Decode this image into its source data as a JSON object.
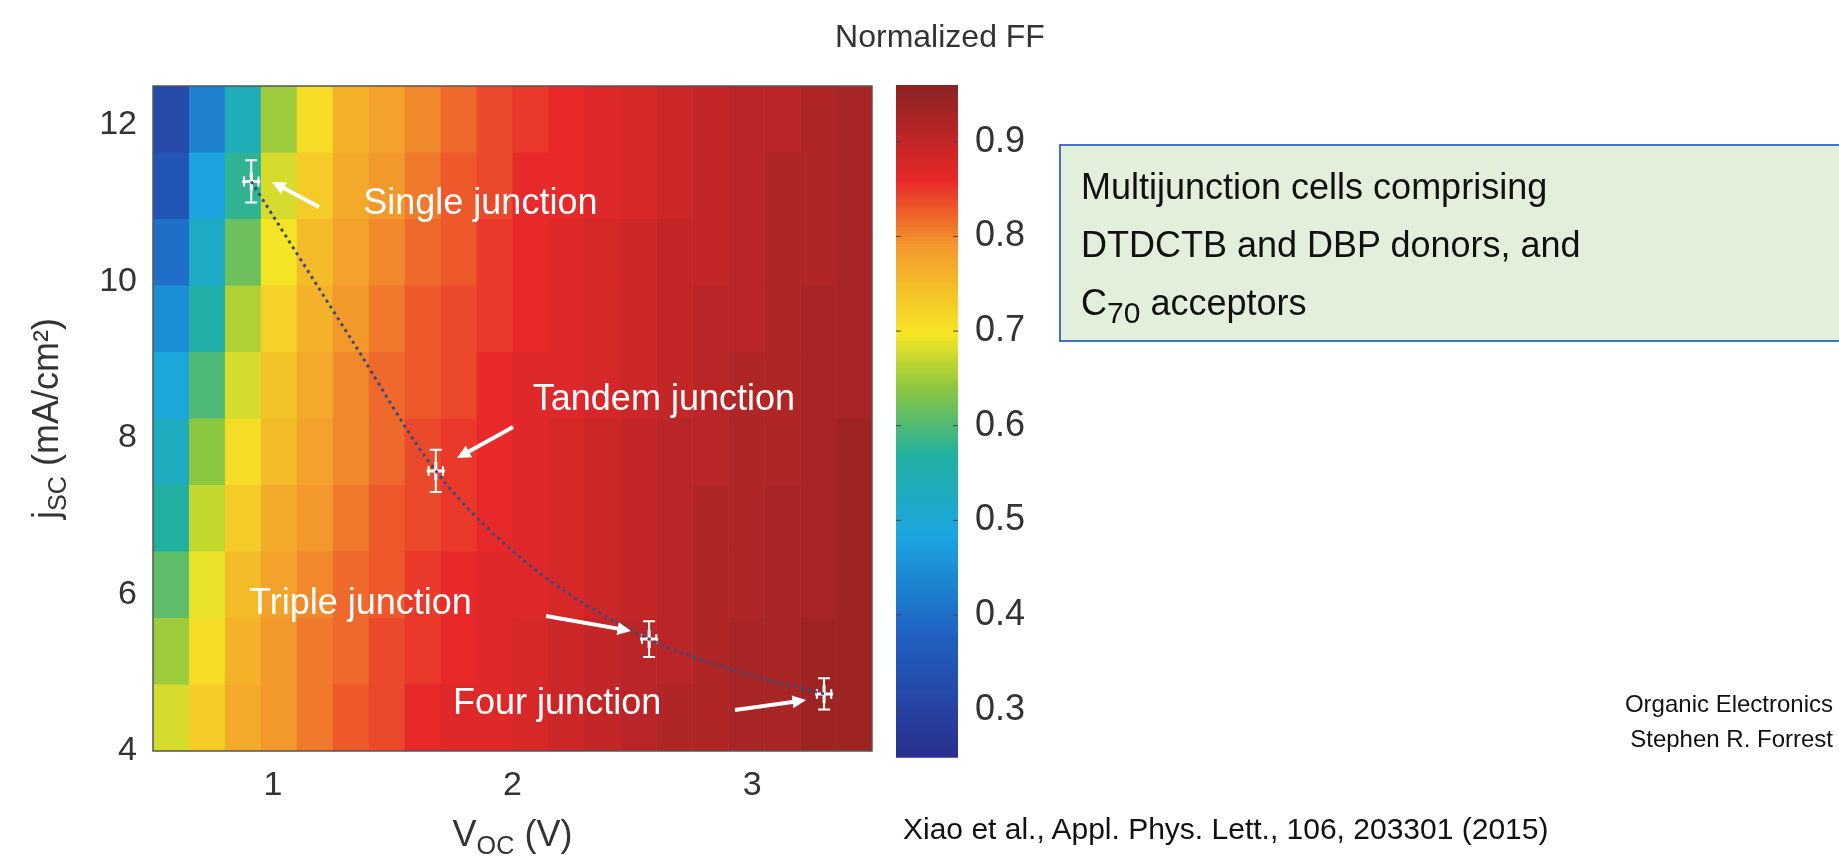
{
  "chart_data": {
    "type": "heatmap",
    "xlabel": "V$_{OC}$ (V)",
    "ylabel": "j$_{SC}$ (mA/cm²)",
    "clabel": "Normalized FF",
    "xlim": [
      0.5,
      3.5
    ],
    "ylim": [
      4,
      12.5
    ],
    "xticks": [
      1,
      2,
      3
    ],
    "yticks": [
      4,
      6,
      8,
      10,
      12
    ],
    "clim": [
      0.25,
      0.96
    ],
    "cticks": [
      0.3,
      0.4,
      0.5,
      0.6,
      0.7,
      0.8,
      0.9
    ],
    "x": [
      0.575,
      0.725,
      0.875,
      1.025,
      1.175,
      1.325,
      1.475,
      1.625,
      1.775,
      1.925,
      2.075,
      2.225,
      2.375,
      2.525,
      2.675,
      2.825,
      2.975,
      3.125,
      3.275,
      3.425
    ],
    "y": [
      12.075,
      11.225,
      10.375,
      9.525,
      8.675,
      7.825,
      6.975,
      6.125,
      5.275,
      4.425
    ],
    "cells": [
      [
        0.32,
        0.43,
        0.54,
        0.65,
        0.71,
        0.76,
        0.78,
        0.8,
        0.82,
        0.84,
        0.85,
        0.86,
        0.87,
        0.88,
        0.89,
        0.9,
        0.91,
        0.91,
        0.92,
        0.93
      ],
      [
        0.35,
        0.48,
        0.58,
        0.68,
        0.73,
        0.77,
        0.79,
        0.81,
        0.83,
        0.84,
        0.86,
        0.86,
        0.87,
        0.88,
        0.89,
        0.9,
        0.91,
        0.92,
        0.92,
        0.93
      ],
      [
        0.4,
        0.52,
        0.62,
        0.7,
        0.75,
        0.78,
        0.8,
        0.82,
        0.83,
        0.85,
        0.86,
        0.87,
        0.88,
        0.89,
        0.9,
        0.9,
        0.91,
        0.92,
        0.92,
        0.93
      ],
      [
        0.45,
        0.56,
        0.66,
        0.72,
        0.76,
        0.79,
        0.81,
        0.83,
        0.84,
        0.85,
        0.86,
        0.87,
        0.88,
        0.89,
        0.9,
        0.91,
        0.91,
        0.92,
        0.93,
        0.93
      ],
      [
        0.49,
        0.6,
        0.68,
        0.74,
        0.77,
        0.8,
        0.82,
        0.83,
        0.84,
        0.86,
        0.87,
        0.87,
        0.88,
        0.89,
        0.9,
        0.91,
        0.92,
        0.92,
        0.93,
        0.93
      ],
      [
        0.53,
        0.64,
        0.71,
        0.75,
        0.78,
        0.8,
        0.82,
        0.84,
        0.85,
        0.86,
        0.87,
        0.88,
        0.89,
        0.9,
        0.91,
        0.91,
        0.92,
        0.92,
        0.93,
        0.94
      ],
      [
        0.57,
        0.67,
        0.73,
        0.77,
        0.79,
        0.81,
        0.83,
        0.84,
        0.85,
        0.86,
        0.87,
        0.88,
        0.89,
        0.9,
        0.91,
        0.92,
        0.92,
        0.93,
        0.93,
        0.94
      ],
      [
        0.61,
        0.69,
        0.75,
        0.78,
        0.8,
        0.82,
        0.83,
        0.85,
        0.86,
        0.87,
        0.87,
        0.88,
        0.89,
        0.9,
        0.91,
        0.92,
        0.92,
        0.93,
        0.93,
        0.94
      ],
      [
        0.65,
        0.71,
        0.76,
        0.79,
        0.81,
        0.82,
        0.84,
        0.85,
        0.86,
        0.87,
        0.88,
        0.89,
        0.9,
        0.91,
        0.91,
        0.92,
        0.93,
        0.93,
        0.94,
        0.94
      ],
      [
        0.68,
        0.73,
        0.77,
        0.79,
        0.81,
        0.83,
        0.84,
        0.86,
        0.87,
        0.87,
        0.88,
        0.89,
        0.9,
        0.91,
        0.92,
        0.92,
        0.93,
        0.93,
        0.94,
        0.94
      ]
    ],
    "series": [
      {
        "type": "line",
        "x": [
          0.91,
          1.33,
          1.68,
          2.07,
          2.57,
          2.94,
          3.3
        ],
        "values": [
          11.28,
          9.25,
          7.58,
          6.38,
          5.43,
          5.02,
          4.73
        ],
        "color": "#3d4a7a",
        "line_style": "dotted"
      },
      {
        "type": "scatter",
        "x": [
          0.91,
          1.68,
          2.57,
          3.3
        ],
        "values": [
          11.28,
          7.58,
          5.43,
          4.73
        ],
        "errors": [
          0.27,
          0.27,
          0.23,
          0.2
        ],
        "xerrors": [
          0.03,
          0.03,
          0.03,
          0.03
        ],
        "color": "#ffffff",
        "marker": "cross"
      }
    ],
    "annotations": [
      "Single junction",
      "Tandem junction",
      "Triple junction",
      "Four junction",
      "Multijunction cells comprising DTDCTB and DBP donors, and C$_{70}$ acceptors",
      "Xiao et al., Appl. Phys. Lett., 106, 203301 (2015)",
      "Organic Electronics",
      "Stephen R. Forrest"
    ]
  }
}
